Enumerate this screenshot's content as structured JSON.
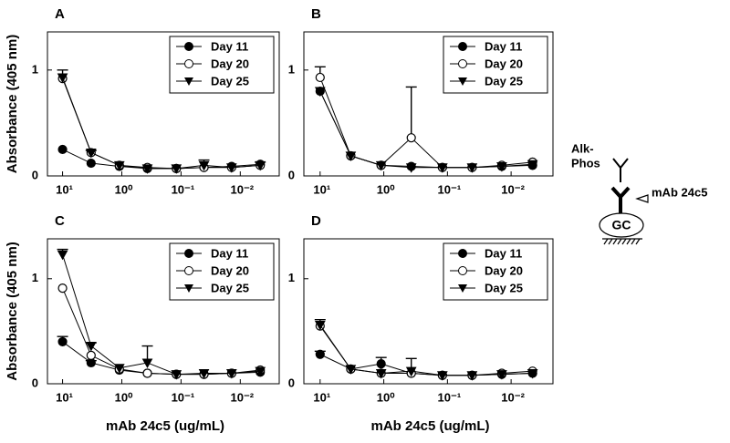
{
  "chart_data": [
    {
      "type": "line",
      "label": "A",
      "ylabel": "Absorbance (405 nm)",
      "x": [
        10,
        3.3,
        1.1,
        0.37,
        0.12,
        0.041,
        0.014,
        0.0046
      ],
      "xlim": [
        18,
        0.0022
      ],
      "log_x": true,
      "xticks": [
        {
          "value": 10,
          "label": "10¹"
        },
        {
          "value": 1,
          "label": "10⁰"
        },
        {
          "value": 0.1,
          "label": "10⁻¹"
        },
        {
          "value": 0.01,
          "label": "10⁻²"
        }
      ],
      "ylim": [
        0,
        1.36
      ],
      "yticks": [
        0,
        1
      ],
      "legend": "upper right",
      "series": [
        {
          "name": "Day 11",
          "marker": "circle",
          "color": "#000000",
          "values": [
            0.25,
            0.12,
            0.09,
            0.07,
            0.07,
            0.08,
            0.09,
            0.11
          ]
        },
        {
          "name": "Day 20",
          "marker": "open-circle",
          "color": "#000000",
          "values": [
            0.92,
            0.22,
            0.1,
            0.08,
            0.07,
            0.08,
            0.08,
            0.1
          ]
        },
        {
          "name": "Day 25",
          "marker": "triangle-down",
          "color": "#000000",
          "values": [
            0.93,
            0.22,
            0.1,
            0.07,
            0.07,
            0.1,
            0.08,
            0.1
          ],
          "errors": [
            0.07,
            0.02,
            null,
            null,
            null,
            0.05,
            null,
            0.03
          ]
        }
      ]
    },
    {
      "type": "line",
      "label": "B",
      "x": [
        10,
        3.3,
        1.1,
        0.37,
        0.12,
        0.041,
        0.014,
        0.0046
      ],
      "xlim": [
        18,
        0.0022
      ],
      "log_x": true,
      "xticks": [
        {
          "value": 10,
          "label": "10¹"
        },
        {
          "value": 1,
          "label": "10⁰"
        },
        {
          "value": 0.1,
          "label": "10⁻¹"
        },
        {
          "value": 0.01,
          "label": "10⁻²"
        }
      ],
      "ylim": [
        0,
        1.36
      ],
      "yticks": [
        0,
        1
      ],
      "legend": "upper right",
      "series": [
        {
          "name": "Day 11",
          "marker": "circle",
          "color": "#000000",
          "values": [
            0.8,
            0.19,
            0.1,
            0.09,
            0.08,
            0.08,
            0.09,
            0.1
          ]
        },
        {
          "name": "Day 20",
          "marker": "open-circle",
          "color": "#000000",
          "values": [
            0.93,
            0.19,
            0.1,
            0.36,
            0.08,
            0.08,
            0.1,
            0.13
          ],
          "errors": [
            0.1,
            null,
            null,
            0.48,
            null,
            null,
            null,
            null
          ]
        },
        {
          "name": "Day 25",
          "marker": "triangle-down",
          "color": "#000000",
          "values": [
            0.8,
            0.19,
            0.1,
            0.08,
            0.08,
            0.08,
            0.09,
            0.11
          ]
        }
      ]
    },
    {
      "type": "line",
      "label": "C",
      "ylabel": "Absorbance (405 nm)",
      "xlabel": "mAb 24c5 (ug/mL)",
      "x": [
        10,
        3.3,
        1.1,
        0.37,
        0.12,
        0.041,
        0.014,
        0.0046
      ],
      "xlim": [
        18,
        0.0022
      ],
      "log_x": true,
      "xticks": [
        {
          "value": 10,
          "label": "10¹"
        },
        {
          "value": 1,
          "label": "10⁰"
        },
        {
          "value": 0.1,
          "label": "10⁻¹"
        },
        {
          "value": 0.01,
          "label": "10⁻²"
        }
      ],
      "ylim": [
        0,
        1.38
      ],
      "yticks": [
        0,
        1
      ],
      "legend": "upper right",
      "series": [
        {
          "name": "Day 11",
          "marker": "circle",
          "color": "#000000",
          "values": [
            0.4,
            0.2,
            0.13,
            0.1,
            0.09,
            0.09,
            0.1,
            0.11
          ],
          "errors": [
            0.05,
            0.02,
            null,
            null,
            null,
            null,
            null,
            null
          ]
        },
        {
          "name": "Day 20",
          "marker": "open-circle",
          "color": "#000000",
          "values": [
            0.91,
            0.27,
            0.14,
            0.1,
            0.09,
            0.09,
            0.1,
            0.13
          ]
        },
        {
          "name": "Day 25",
          "marker": "triangle-down",
          "color": "#000000",
          "values": [
            1.23,
            0.36,
            0.15,
            0.2,
            0.09,
            0.1,
            0.1,
            0.12
          ],
          "errors": [
            0.05,
            0.03,
            null,
            0.16,
            null,
            null,
            null,
            null
          ]
        }
      ]
    },
    {
      "type": "line",
      "label": "D",
      "xlabel": "mAb 24c5 (ug/mL)",
      "x": [
        10,
        3.3,
        1.1,
        0.37,
        0.12,
        0.041,
        0.014,
        0.0046
      ],
      "xlim": [
        18,
        0.0022
      ],
      "log_x": true,
      "xticks": [
        {
          "value": 10,
          "label": "10¹"
        },
        {
          "value": 1,
          "label": "10⁰"
        },
        {
          "value": 0.1,
          "label": "10⁻¹"
        },
        {
          "value": 0.01,
          "label": "10⁻²"
        }
      ],
      "ylim": [
        0,
        1.38
      ],
      "yticks": [
        0,
        1
      ],
      "legend": "upper right",
      "series": [
        {
          "name": "Day 11",
          "marker": "circle",
          "color": "#000000",
          "values": [
            0.28,
            0.14,
            0.19,
            0.1,
            0.08,
            0.08,
            0.09,
            0.1
          ],
          "errors": [
            0.03,
            null,
            0.06,
            null,
            null,
            null,
            null,
            null
          ]
        },
        {
          "name": "Day 20",
          "marker": "open-circle",
          "color": "#000000",
          "values": [
            0.55,
            0.14,
            0.1,
            0.1,
            0.08,
            0.08,
            0.1,
            0.12
          ]
        },
        {
          "name": "Day 25",
          "marker": "triangle-down",
          "color": "#000000",
          "values": [
            0.56,
            0.14,
            0.1,
            0.12,
            0.08,
            0.08,
            0.09,
            0.1
          ],
          "errors": [
            0.05,
            null,
            null,
            0.12,
            null,
            null,
            null,
            null
          ]
        }
      ]
    }
  ],
  "diagram": {
    "enzyme_lines": [
      "Alk-",
      "Phos"
    ],
    "antibody": "mAb 24c5",
    "antigen": "GC"
  }
}
